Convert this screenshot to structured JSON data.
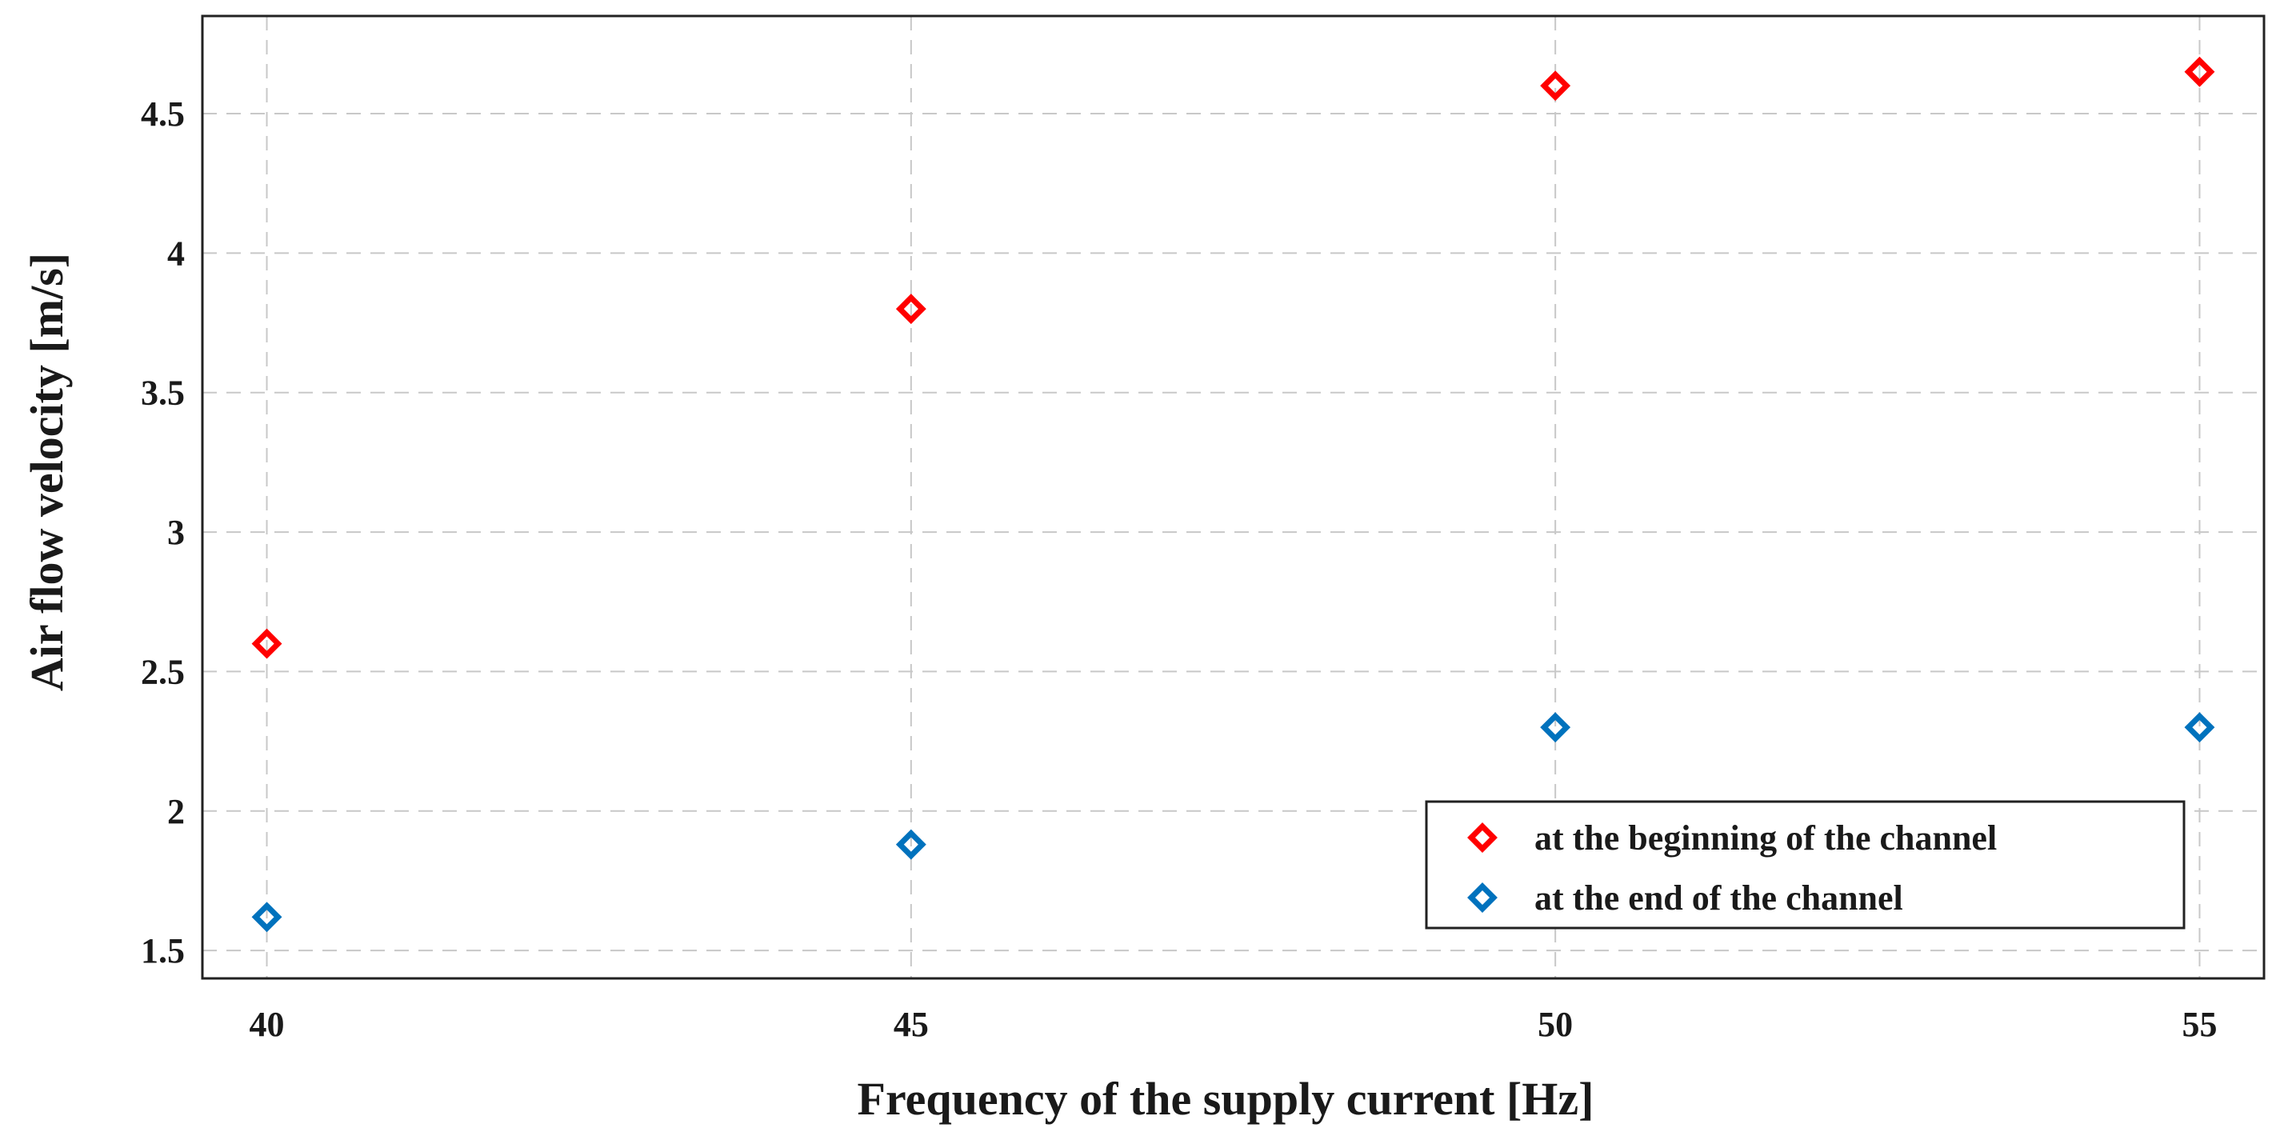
{
  "chart_data": {
    "type": "scatter",
    "title": "",
    "xlabel": "Frequency of the supply current  [Hz]",
    "ylabel": "Air flow velocity [m/s]",
    "xlim": [
      39.5,
      55.5
    ],
    "ylim": [
      1.4,
      4.85
    ],
    "xticks": [
      40,
      45,
      50,
      55
    ],
    "xtick_labels": [
      "40",
      "45",
      "50",
      "55"
    ],
    "yticks": [
      1.5,
      2,
      2.5,
      3,
      3.5,
      4,
      4.5
    ],
    "ytick_labels": [
      "1.5",
      "2",
      "2.5",
      "3",
      "3.5",
      "4",
      "4.5"
    ],
    "grid": true,
    "legend_position": "bottom-right",
    "marker": "diamond-open",
    "x": [
      40,
      45,
      50,
      55
    ],
    "series": [
      {
        "name": "at the beginning of the channel",
        "color": "#ff0000",
        "values": [
          2.6,
          3.8,
          4.6,
          4.65
        ]
      },
      {
        "name": "at the end of the channel",
        "color": "#0072bd",
        "values": [
          1.62,
          1.88,
          2.3,
          2.3
        ]
      }
    ]
  }
}
